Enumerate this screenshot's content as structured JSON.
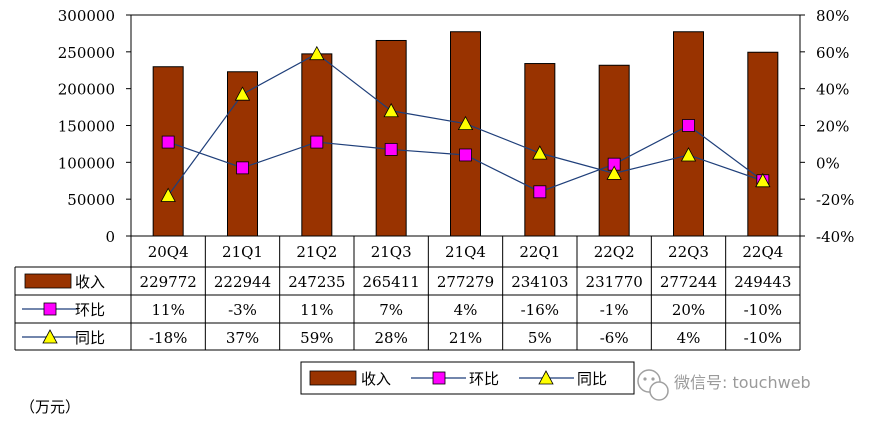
{
  "chart_data": {
    "type": "bar",
    "categories": [
      "20Q4",
      "21Q1",
      "21Q2",
      "21Q3",
      "21Q4",
      "22Q1",
      "22Q2",
      "22Q3",
      "22Q4"
    ],
    "series": [
      {
        "name": "收入",
        "kind": "bar",
        "axis": "left",
        "color": "#993300",
        "values": [
          229772,
          222944,
          247235,
          265411,
          277279,
          234103,
          231770,
          277244,
          249443
        ]
      },
      {
        "name": "环比",
        "kind": "line",
        "axis": "right",
        "color": "#1f3f7a",
        "marker": "square",
        "marker_color": "#ff00ff",
        "values": [
          11,
          -3,
          11,
          7,
          4,
          -16,
          -1,
          20,
          -10
        ]
      },
      {
        "name": "同比",
        "kind": "line",
        "axis": "right",
        "color": "#1f3f7a",
        "marker": "triangle",
        "marker_color": "#ffff00",
        "values": [
          -18,
          37,
          59,
          28,
          21,
          5,
          -6,
          4,
          -10
        ]
      }
    ],
    "left_axis": {
      "min": 0,
      "max": 300000,
      "step": 50000,
      "ticks": [
        "0",
        "50000",
        "100000",
        "150000",
        "200000",
        "250000",
        "300000"
      ]
    },
    "right_axis": {
      "min": -40,
      "max": 80,
      "step": 20,
      "unit": "%",
      "ticks": [
        "-40%",
        "-20%",
        "0%",
        "20%",
        "40%",
        "60%",
        "80%"
      ]
    },
    "table": {
      "rows": [
        {
          "label": "收入",
          "cells": [
            "229772",
            "222944",
            "247235",
            "265411",
            "277279",
            "234103",
            "231770",
            "277244",
            "249443"
          ]
        },
        {
          "label": "环比",
          "cells": [
            "11%",
            "-3%",
            "11%",
            "7%",
            "4%",
            "-16%",
            "-1%",
            "20%",
            "-10%"
          ]
        },
        {
          "label": "同比",
          "cells": [
            "-18%",
            "37%",
            "59%",
            "28%",
            "21%",
            "5%",
            "-6%",
            "4%",
            "-10%"
          ]
        }
      ]
    },
    "legend": {
      "placement": "bottom",
      "items": [
        "收入",
        "环比",
        "同比"
      ]
    },
    "unit_label": "（万元）",
    "grid": false
  },
  "watermark": {
    "text": "微信号: touchweb",
    "icon": "wechat-icon"
  }
}
